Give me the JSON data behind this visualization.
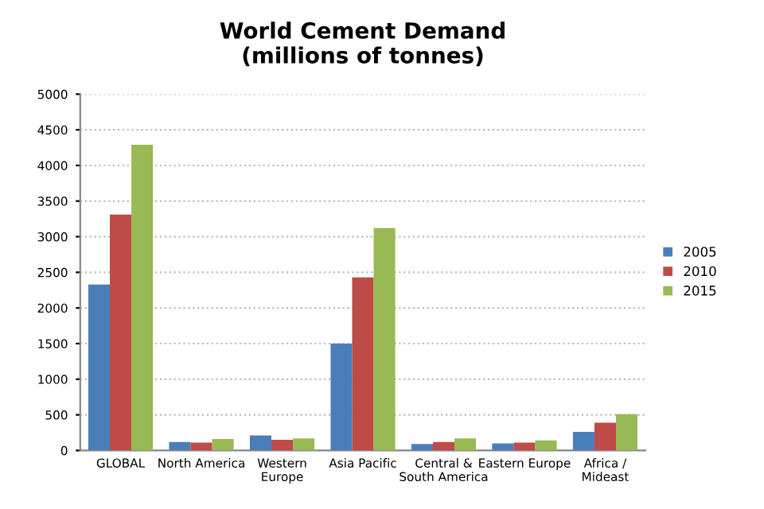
{
  "chart_data": {
    "type": "bar",
    "title": "World Cement Demand\n(millions of tonnes)",
    "categories": [
      "GLOBAL",
      "North America",
      "Western\nEurope",
      "Asia Pacific",
      "Central &\nSouth America",
      "Eastern Europe",
      "Africa /\nMideast"
    ],
    "series": [
      {
        "name": "2005",
        "color": "#4a7ebb",
        "values": [
          2330,
          120,
          210,
          1500,
          90,
          100,
          260
        ]
      },
      {
        "name": "2010",
        "color": "#be4b48",
        "values": [
          3310,
          110,
          150,
          2430,
          120,
          110,
          390
        ]
      },
      {
        "name": "2015",
        "color": "#98b954",
        "values": [
          4290,
          160,
          170,
          3120,
          170,
          140,
          510
        ]
      }
    ],
    "ylim": [
      0,
      5000
    ],
    "yticks": [
      0,
      500,
      1000,
      1500,
      2000,
      2500,
      3000,
      3500,
      4000,
      4500,
      5000
    ],
    "grid": "y",
    "legend": "right"
  }
}
